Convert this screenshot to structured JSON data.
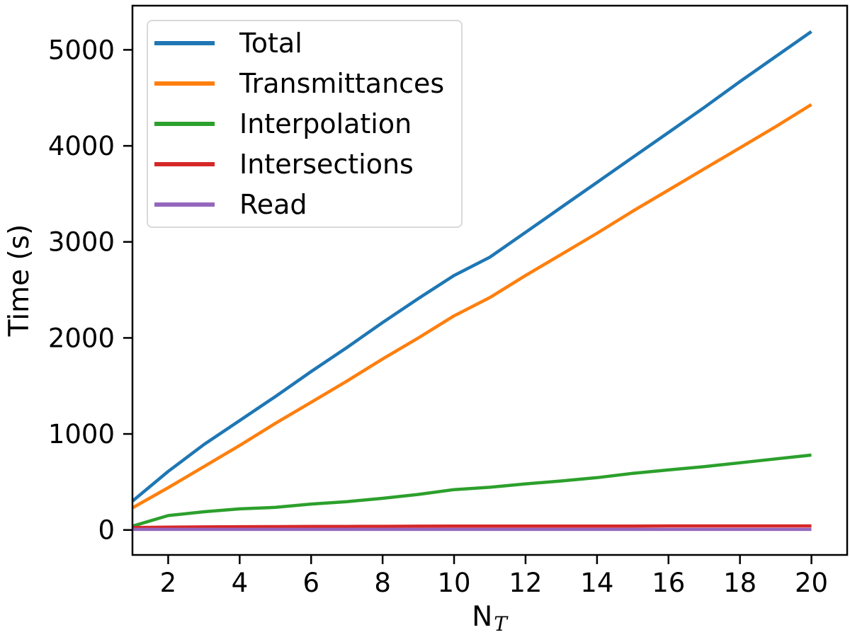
{
  "figure": {
    "ylabel": "Time (s)",
    "xlabel_base": "N",
    "xlabel_sub": "T",
    "background_color": "#ffffff",
    "spine_color": "#000000",
    "legend_border_color": "#d9d9d9"
  },
  "chart_data": {
    "type": "line",
    "title": "",
    "xlabel": "N_T",
    "ylabel": "Time (s)",
    "xlim": [
      1,
      21
    ],
    "ylim": [
      -260,
      5460
    ],
    "grid": false,
    "legend_position": "upper left",
    "xticks": [
      2,
      4,
      6,
      8,
      10,
      12,
      14,
      16,
      18,
      20
    ],
    "yticks": [
      0,
      1000,
      2000,
      3000,
      4000,
      5000
    ],
    "x": [
      1,
      2,
      3,
      4,
      5,
      6,
      7,
      8,
      9,
      10,
      11,
      12,
      13,
      14,
      15,
      16,
      17,
      18,
      19,
      20
    ],
    "series": [
      {
        "name": "Total",
        "color": "#1f77b4",
        "values": [
          300,
          610,
          890,
          1140,
          1390,
          1650,
          1900,
          2160,
          2410,
          2650,
          2840,
          3100,
          3360,
          3620,
          3880,
          4140,
          4400,
          4670,
          4930,
          5190
        ]
      },
      {
        "name": "Transmittances",
        "color": "#ff7f0e",
        "values": [
          230,
          440,
          660,
          880,
          1110,
          1330,
          1550,
          1780,
          2000,
          2230,
          2420,
          2650,
          2870,
          3090,
          3320,
          3540,
          3760,
          3980,
          4200,
          4430
        ]
      },
      {
        "name": "Interpolation",
        "color": "#2ca02c",
        "values": [
          40,
          150,
          190,
          220,
          235,
          270,
          295,
          330,
          370,
          420,
          445,
          480,
          510,
          545,
          590,
          625,
          660,
          700,
          740,
          780
        ]
      },
      {
        "name": "Intersections",
        "color": "#d62728",
        "values": [
          25,
          30,
          32,
          34,
          35,
          36,
          37,
          38,
          39,
          40,
          40,
          40,
          41,
          41,
          41,
          42,
          42,
          42,
          42,
          42
        ]
      },
      {
        "name": "Read",
        "color": "#9467bd",
        "values": [
          6,
          6,
          6,
          6,
          6,
          6,
          6,
          6,
          6,
          6,
          6,
          6,
          6,
          6,
          6,
          6,
          6,
          6,
          6,
          6
        ]
      }
    ]
  }
}
